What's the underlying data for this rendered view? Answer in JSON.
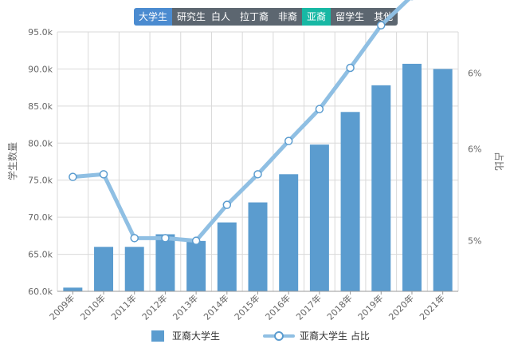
{
  "toolbar": {
    "level_buttons": [
      {
        "label": "大学生",
        "active": true
      },
      {
        "label": "研究生",
        "active": false
      }
    ],
    "race_buttons": [
      {
        "label": "白人",
        "active": false
      },
      {
        "label": "拉丁裔",
        "active": false
      },
      {
        "label": "非裔",
        "active": false
      },
      {
        "label": "亚裔",
        "active": true
      },
      {
        "label": "留学生",
        "active": false
      },
      {
        "label": "其他",
        "active": false
      }
    ]
  },
  "colors": {
    "bar": "#5b9ccf",
    "line": "#8fbfe3",
    "marker_stroke": "#5b9ccf",
    "grid": "#d9d9d9",
    "axis_text": "#666666",
    "level_active": "#4b8bd0",
    "race_active": "#17b8a4",
    "button_inactive": "#5c6670"
  },
  "chart_data": {
    "type": "bar",
    "categories": [
      "2009年",
      "2010年",
      "2011年",
      "2012年",
      "2013年",
      "2014年",
      "2015年",
      "2016年",
      "2017年",
      "2018年",
      "2019年",
      "2020年",
      "2021年"
    ],
    "y_left": {
      "label": "学生数量",
      "ticks": [
        "60.0k",
        "65.0k",
        "70.0k",
        "75.0k",
        "80.0k",
        "85.0k",
        "90.0k",
        "95.0k"
      ],
      "range": [
        60000,
        95000
      ]
    },
    "y_right": {
      "label": "占比",
      "ticks": [
        "5%",
        "6%",
        "6%"
      ],
      "range": [
        4.6,
        6.55
      ]
    },
    "series": [
      {
        "name": "亚裔大学生",
        "type": "bar",
        "values": [
          60500,
          66000,
          66000,
          67700,
          66800,
          69300,
          72000,
          75800,
          79800,
          84200,
          87800,
          90700,
          90000
        ]
      },
      {
        "name": "亚裔大学生 占比",
        "type": "line",
        "values": [
          5.46,
          5.48,
          5.0,
          5.0,
          4.98,
          5.25,
          5.48,
          5.73,
          5.97,
          6.28,
          6.6,
          6.82,
          7.12
        ]
      }
    ],
    "grid": true,
    "legend": "bottom"
  }
}
